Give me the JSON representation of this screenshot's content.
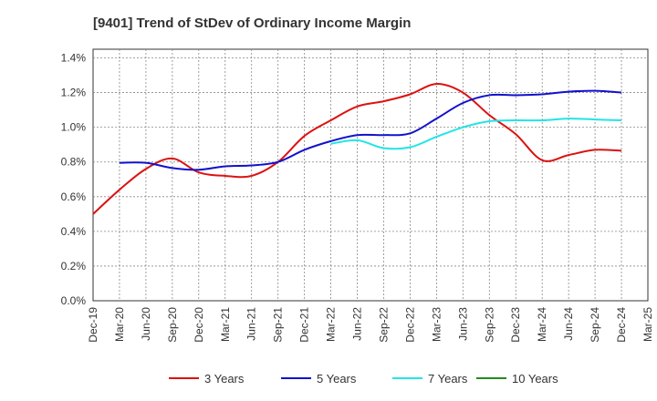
{
  "chart_data": {
    "type": "line",
    "title": "[9401]  Trend of StDev of Ordinary Income Margin",
    "xlabel": "",
    "ylabel": "",
    "categories": [
      "Dec-19",
      "Mar-20",
      "Jun-20",
      "Sep-20",
      "Dec-20",
      "Mar-21",
      "Jun-21",
      "Sep-21",
      "Dec-21",
      "Mar-22",
      "Jun-22",
      "Sep-22",
      "Dec-22",
      "Mar-23",
      "Jun-23",
      "Sep-23",
      "Dec-23",
      "Mar-24",
      "Jun-24",
      "Sep-24",
      "Dec-24",
      "Mar-25"
    ],
    "y_ticks": [
      "0.0%",
      "0.2%",
      "0.4%",
      "0.6%",
      "0.8%",
      "1.0%",
      "1.2%",
      "1.4%"
    ],
    "ylim": [
      0,
      1.45
    ],
    "y_unit": "%",
    "grid": true,
    "legend_position": "bottom",
    "series": [
      {
        "name": "3 Years",
        "color": "#dd1111",
        "values": [
          0.5,
          0.64,
          0.76,
          0.82,
          0.74,
          0.72,
          0.72,
          0.8,
          0.95,
          1.04,
          1.12,
          1.15,
          1.19,
          1.25,
          1.2,
          1.07,
          0.96,
          0.81,
          0.84,
          0.87,
          0.865,
          null
        ]
      },
      {
        "name": "5 Years",
        "color": "#1111cc",
        "values": [
          null,
          0.795,
          0.795,
          0.765,
          0.755,
          0.775,
          0.78,
          0.8,
          0.87,
          0.92,
          0.955,
          0.955,
          0.965,
          1.05,
          1.14,
          1.185,
          1.185,
          1.19,
          1.205,
          1.21,
          1.2,
          null
        ]
      },
      {
        "name": "7 Years",
        "color": "#22e5e5",
        "values": [
          null,
          null,
          null,
          null,
          null,
          null,
          null,
          null,
          null,
          0.905,
          0.925,
          0.88,
          0.885,
          0.945,
          1.0,
          1.035,
          1.04,
          1.04,
          1.05,
          1.045,
          1.04,
          null
        ]
      },
      {
        "name": "10 Years",
        "color": "#228822",
        "values": [
          null,
          null,
          null,
          null,
          null,
          null,
          null,
          null,
          null,
          null,
          null,
          null,
          null,
          null,
          null,
          null,
          null,
          null,
          null,
          null,
          null,
          null
        ]
      }
    ]
  }
}
